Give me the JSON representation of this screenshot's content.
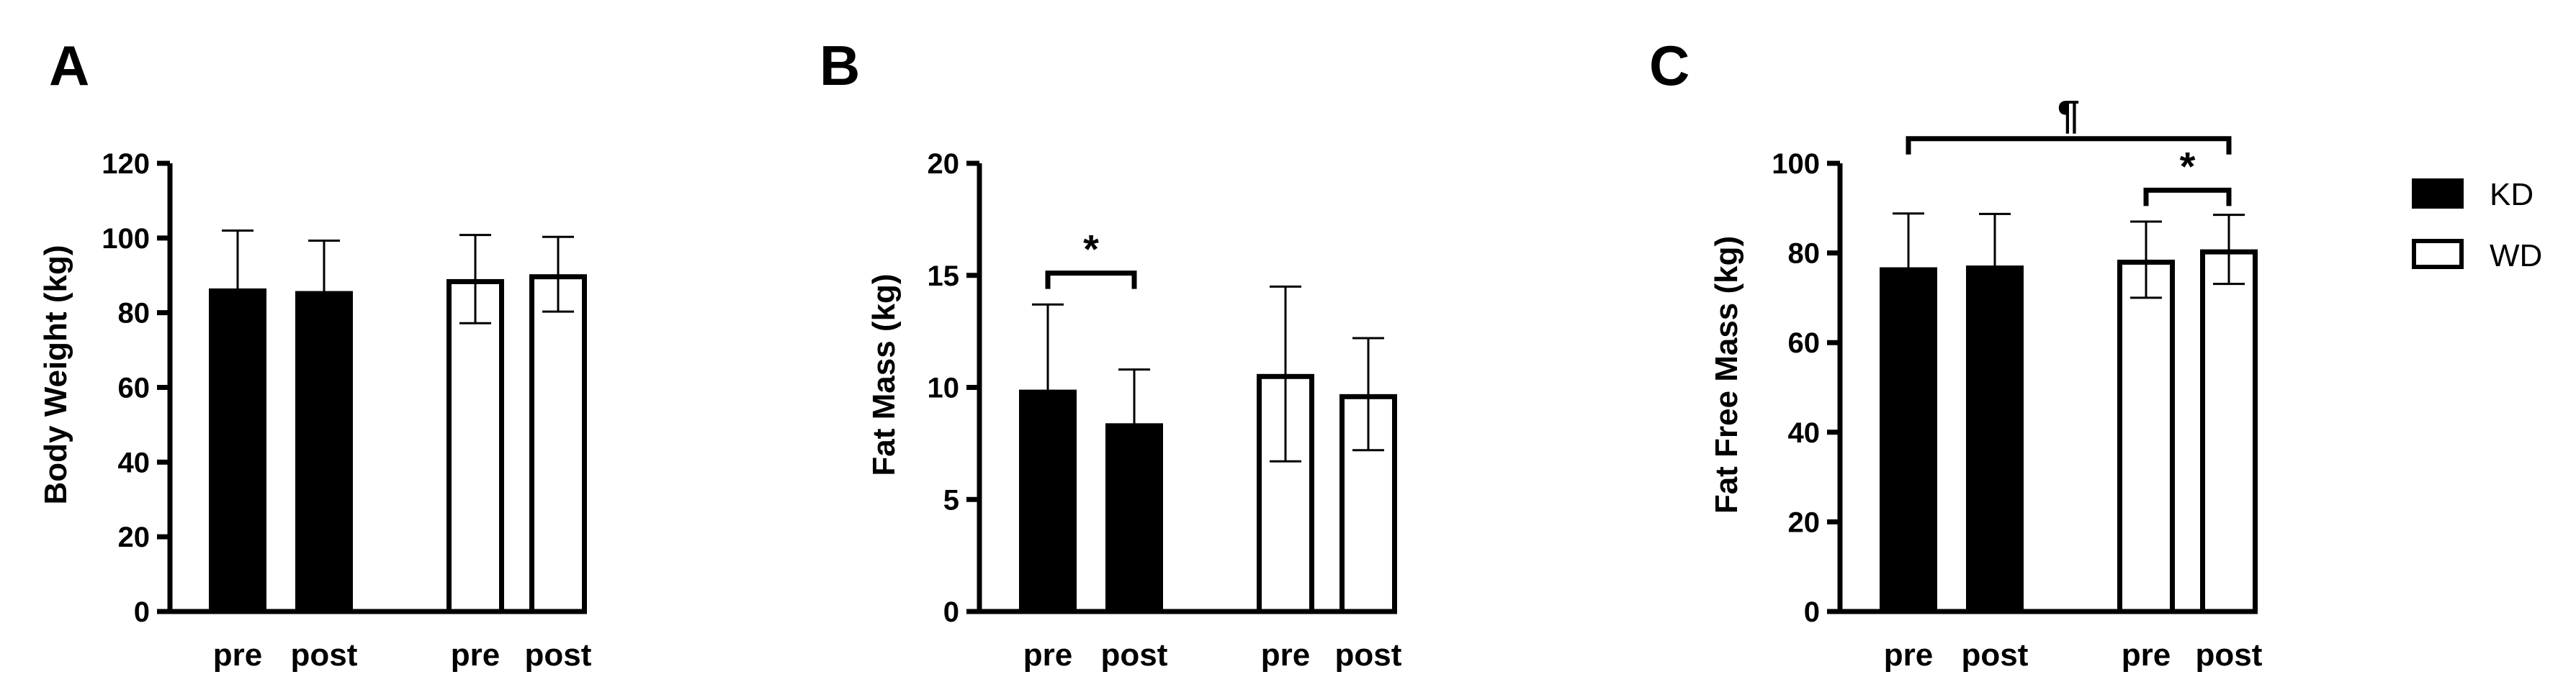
{
  "chart_data": [
    {
      "type": "bar",
      "panel": "A",
      "ylabel": "Body Weight (kg)",
      "ylim": [
        0,
        120
      ],
      "yticks": [
        0,
        20,
        40,
        60,
        80,
        100,
        120
      ],
      "categories": [
        "pre",
        "post",
        "pre",
        "post"
      ],
      "groups": [
        "KD",
        "KD",
        "WD",
        "WD"
      ],
      "values": [
        86.5,
        85.8,
        89.0,
        90.3
      ],
      "errors": [
        15.5,
        13.5,
        11.8,
        10.0
      ],
      "annotations": []
    },
    {
      "type": "bar",
      "panel": "B",
      "ylabel": "Fat Mass (kg)",
      "ylim": [
        0,
        20
      ],
      "yticks": [
        0,
        5,
        10,
        15,
        20
      ],
      "categories": [
        "pre",
        "post",
        "pre",
        "post"
      ],
      "groups": [
        "KD",
        "KD",
        "WD",
        "WD"
      ],
      "values": [
        9.9,
        8.4,
        10.6,
        9.7
      ],
      "errors": [
        3.8,
        2.4,
        3.9,
        2.5
      ],
      "annotations": [
        {
          "symbol": "*",
          "from": 0,
          "to": 1,
          "y": 15.1
        }
      ]
    },
    {
      "type": "bar",
      "panel": "C",
      "ylabel": "Fat Free Mass (kg)",
      "ylim": [
        0,
        100
      ],
      "yticks": [
        0,
        20,
        40,
        60,
        80,
        100
      ],
      "categories": [
        "pre",
        "post",
        "pre",
        "post"
      ],
      "groups": [
        "KD",
        "KD",
        "WD",
        "WD"
      ],
      "values": [
        76.8,
        77.2,
        78.5,
        80.8
      ],
      "errors": [
        12.0,
        11.5,
        8.5,
        7.7
      ],
      "annotations": [
        {
          "symbol": "¶",
          "from": 0,
          "to": 3,
          "y": 105.5
        },
        {
          "symbol": "*",
          "from": 2,
          "to": 3,
          "y": 94.0
        }
      ]
    }
  ],
  "legend": {
    "placement": "right",
    "items": [
      {
        "label": "KD",
        "fill": "#000000"
      },
      {
        "label": "WD",
        "fill": "#ffffff"
      }
    ]
  },
  "colors": {
    "kd": "#000000",
    "wd": "#ffffff",
    "ink": "#000000"
  }
}
